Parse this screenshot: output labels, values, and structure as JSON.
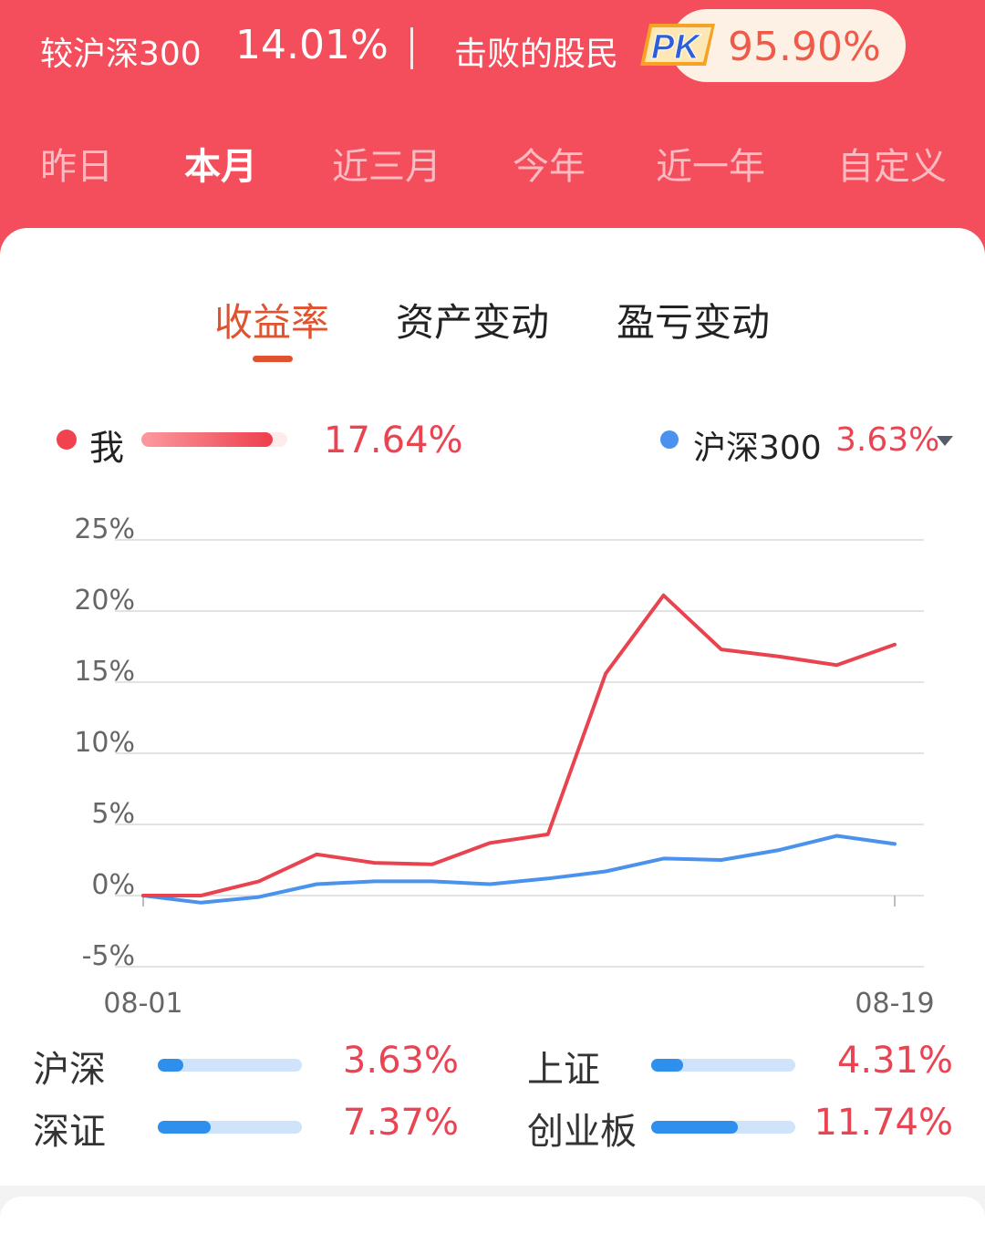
{
  "header": {
    "compare_label": "较沪深300",
    "compare_value": "14.01%",
    "beat_label": "击败的股民",
    "pk_label": "PK",
    "beat_value": "95.90%"
  },
  "periods": [
    "昨日",
    "本月",
    "近三月",
    "今年",
    "近一年",
    "自定义"
  ],
  "active_period": "本月",
  "sub_tabs": [
    "收益率",
    "资产变动",
    "盈亏变动"
  ],
  "active_sub_tab": "收益率",
  "legend": {
    "me_label": "我",
    "me_value": "17.64%",
    "index_label": "沪深300",
    "index_value": "3.63%"
  },
  "colors": {
    "header_bg": "#f44e5c",
    "me_line": "#e8434f",
    "index_line": "#4a92ee",
    "accent": "#e0532f",
    "value_red": "#ea4453"
  },
  "chart_data": {
    "type": "line",
    "x_start_label": "08-01",
    "x_end_label": "08-19",
    "ylim": [
      -5,
      25
    ],
    "yticks": [
      "25%",
      "20%",
      "15%",
      "10%",
      "5%",
      "0%",
      "-5%"
    ],
    "grid": true,
    "series": [
      {
        "name": "我",
        "color": "#e8434f",
        "values": [
          0,
          0,
          1.0,
          2.9,
          2.3,
          2.2,
          3.7,
          4.3,
          15.6,
          21.1,
          17.3,
          16.8,
          16.2,
          17.64
        ]
      },
      {
        "name": "沪深300",
        "color": "#4a92ee",
        "values": [
          0,
          -0.5,
          -0.1,
          0.8,
          1.0,
          1.0,
          0.8,
          1.2,
          1.7,
          2.6,
          2.5,
          3.2,
          4.2,
          3.63
        ]
      }
    ]
  },
  "indices": [
    {
      "name": "沪深",
      "value": "3.63%",
      "fill": 0.18
    },
    {
      "name": "上证",
      "value": "4.31%",
      "fill": 0.22
    },
    {
      "name": "深证",
      "value": "7.37%",
      "fill": 0.37
    },
    {
      "name": "创业板",
      "value": "11.74%",
      "fill": 0.6
    }
  ]
}
